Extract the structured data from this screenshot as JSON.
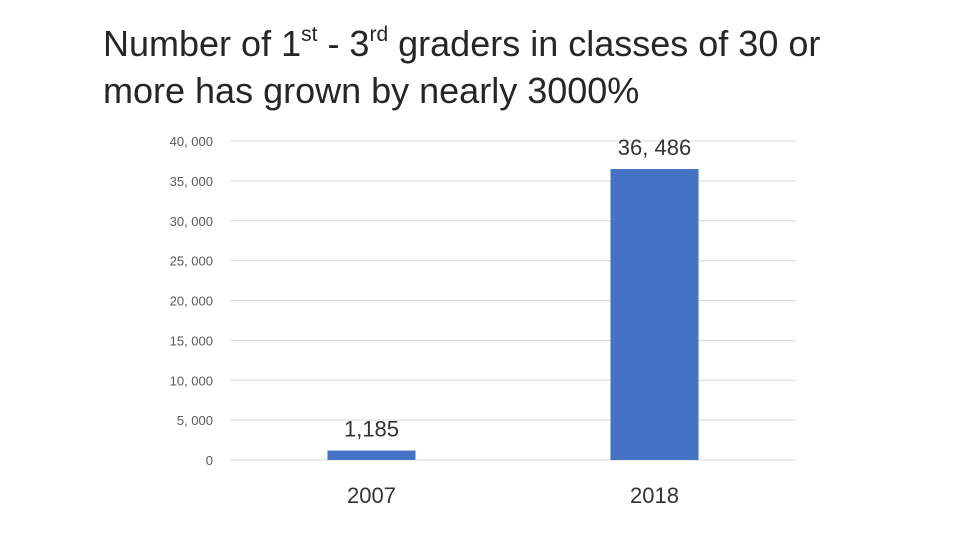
{
  "title": {
    "line1_pre": "Number of 1",
    "sup1": "st",
    "mid": " - 3",
    "sup2": "rd",
    "line1_post": " graders  in classes of 30 or",
    "line2": "more has grown by nearly 3000%"
  },
  "chart_data": {
    "type": "bar",
    "categories": [
      "2007",
      "2018"
    ],
    "values": [
      1185,
      36486
    ],
    "value_labels": [
      "1,185",
      "36, 486"
    ],
    "ylim": [
      0,
      40000
    ],
    "yticks": [
      0,
      5000,
      10000,
      15000,
      20000,
      25000,
      30000,
      35000,
      40000
    ],
    "ytick_labels": [
      "0",
      "5, 000",
      "10, 000",
      "15, 000",
      "20, 000",
      "25, 000",
      "30, 000",
      "35, 000",
      "40, 000"
    ],
    "xlabel": "",
    "ylabel": "",
    "grid": true,
    "legend": "none",
    "bar_color": "#4472C4",
    "grid_color": "#D9D9D9"
  }
}
